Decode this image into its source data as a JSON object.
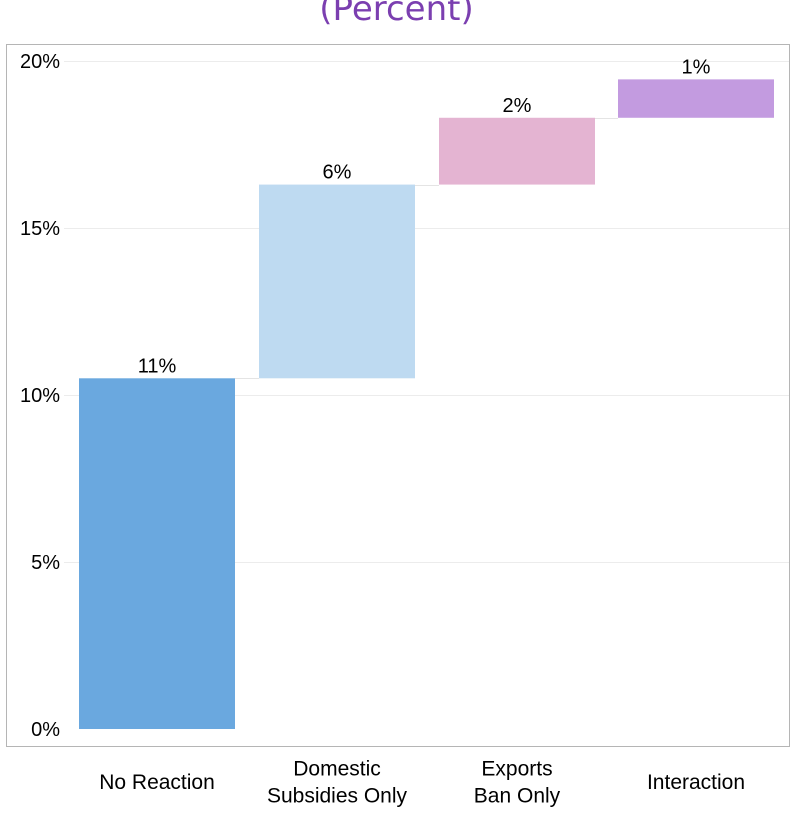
{
  "chart_data": {
    "type": "bar",
    "subtype": "waterfall",
    "title": "(Percent)",
    "xlabel": "",
    "ylabel": "",
    "ylim": [
      0,
      20
    ],
    "yticks": [
      0,
      5,
      10,
      15,
      20
    ],
    "ytick_labels": [
      "0%",
      "5%",
      "10%",
      "15%",
      "20%"
    ],
    "grid": true,
    "categories": [
      [
        "No Reaction"
      ],
      [
        "Domestic",
        "Subsidies Only"
      ],
      [
        "Exports",
        "Ban Only"
      ],
      [
        "Interaction"
      ]
    ],
    "bars": [
      {
        "base": 0,
        "value": 10.5,
        "label": "11%",
        "color": "#6aa8df"
      },
      {
        "base": 10.5,
        "value": 5.8,
        "label": "6%",
        "color": "#bedaf1"
      },
      {
        "base": 16.3,
        "value": 2.0,
        "label": "2%",
        "color": "#e4b4d2"
      },
      {
        "base": 18.3,
        "value": 1.15,
        "label": "1%",
        "color": "#c39be0"
      }
    ]
  },
  "colors": {
    "title": "#7b3fb0",
    "grid": "#ececec",
    "frame": "#b5b5b5",
    "connector": "#e4e4e4"
  }
}
